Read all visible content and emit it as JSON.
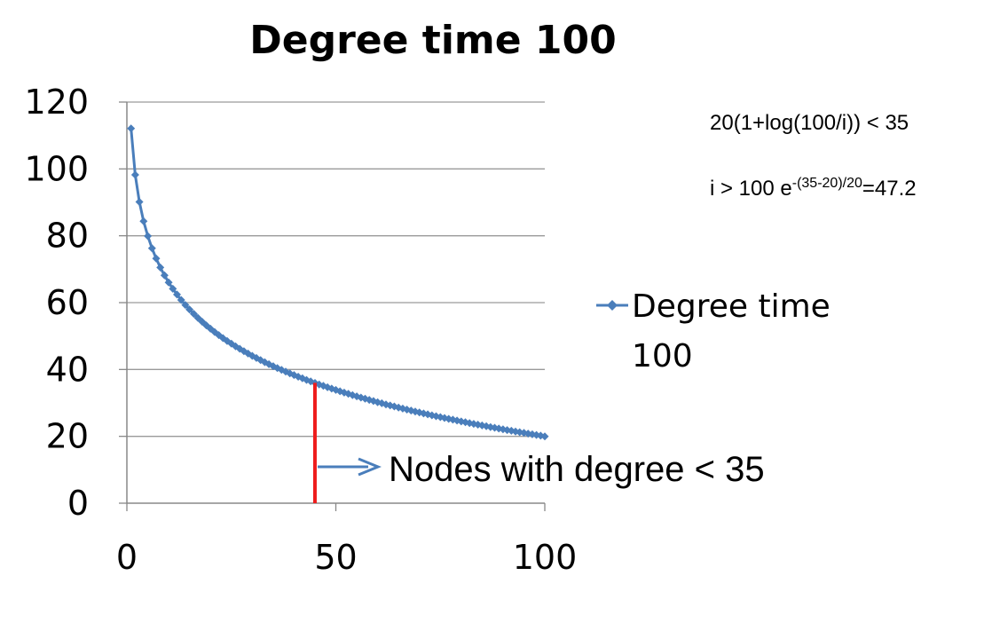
{
  "chart_data": {
    "type": "line",
    "title": "Degree time 100",
    "xlabel": "",
    "ylabel": "",
    "xlim": [
      0,
      100
    ],
    "ylim": [
      0,
      120
    ],
    "x_ticks": [
      "0",
      "50",
      "100"
    ],
    "y_ticks": [
      "0",
      "20",
      "40",
      "60",
      "80",
      "100",
      "120"
    ],
    "grid": "horizontal",
    "legend_position": "right",
    "series": [
      {
        "name": "Degree time 100",
        "color": "#4a7ebb",
        "marker": "diamond",
        "formula": "20(1+log(100/i))",
        "x_range": [
          1,
          100
        ],
        "sample_points": [
          {
            "x": 1,
            "y": 112.1
          },
          {
            "x": 2,
            "y": 98.2
          },
          {
            "x": 3,
            "y": 90.1
          },
          {
            "x": 5,
            "y": 79.9
          },
          {
            "x": 10,
            "y": 66.1
          },
          {
            "x": 20,
            "y": 52.2
          },
          {
            "x": 30,
            "y": 44.1
          },
          {
            "x": 47,
            "y": 35.1
          },
          {
            "x": 60,
            "y": 30.2
          },
          {
            "x": 80,
            "y": 24.5
          },
          {
            "x": 100,
            "y": 20.0
          }
        ]
      }
    ],
    "marker_line": {
      "x": 45,
      "y_top": 36,
      "color": "#ee1c1c"
    },
    "annotations": {
      "inequality": "20(1+log(100/i)) < 35",
      "solution_prefix": "i > 100 e",
      "solution_exponent": "-(35-20)/20",
      "solution_suffix": "=47.2",
      "arrow_label": "Nodes with degree < 35"
    }
  }
}
